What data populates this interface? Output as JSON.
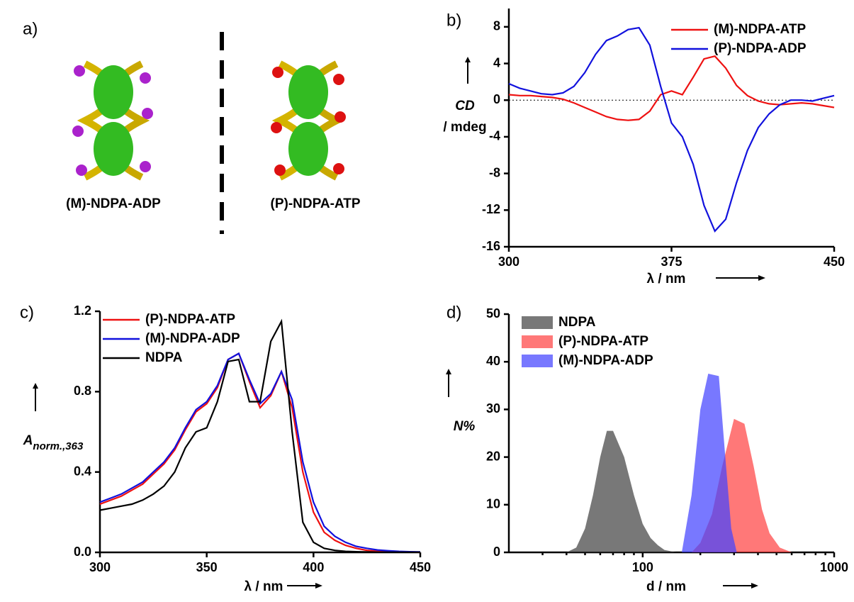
{
  "panel_a": {
    "label": "a)",
    "left_label": "(M)-NDPA-ADP",
    "right_label": "(P)-NDPA-ATP"
  },
  "chart_data": [
    {
      "type": "line",
      "label": "b)",
      "xlabel": "λ / nm",
      "ylabel": "CD",
      "ylabel_unit": "/ mdeg",
      "xlim": [
        300,
        450
      ],
      "ylim": [
        -16,
        10
      ],
      "xticks": [
        300,
        375,
        450
      ],
      "yticks": [
        8,
        4,
        0,
        -4,
        -8,
        -12,
        -16
      ],
      "reference_line": 0,
      "legend": "upper right",
      "x": [
        300,
        305,
        310,
        315,
        320,
        325,
        330,
        335,
        340,
        345,
        350,
        355,
        360,
        365,
        370,
        375,
        380,
        385,
        390,
        395,
        400,
        405,
        410,
        415,
        420,
        425,
        430,
        435,
        440,
        445,
        450
      ],
      "series": [
        {
          "name": "(M)-NDPA-ATP",
          "color": "#ee1111",
          "values": [
            0.6,
            0.5,
            0.5,
            0.4,
            0.3,
            0.1,
            -0.3,
            -0.8,
            -1.3,
            -1.8,
            -2.1,
            -2.2,
            -2.1,
            -1.2,
            0.6,
            1.0,
            0.6,
            2.5,
            4.5,
            4.8,
            3.5,
            1.6,
            0.5,
            -0.1,
            -0.4,
            -0.5,
            -0.4,
            -0.3,
            -0.4,
            -0.6,
            -0.8
          ]
        },
        {
          "name": "(P)-NDPA-ADP",
          "color": "#1111dd",
          "values": [
            1.8,
            1.3,
            1.0,
            0.7,
            0.6,
            0.8,
            1.5,
            3,
            5,
            6.5,
            7,
            7.7,
            7.9,
            6,
            1.5,
            -2.5,
            -4,
            -7,
            -11.5,
            -14.3,
            -13,
            -9,
            -5.5,
            -3,
            -1.5,
            -0.5,
            0,
            0,
            -0.1,
            0.2,
            0.5
          ]
        }
      ]
    },
    {
      "type": "line",
      "label": "c)",
      "xlabel": "λ / nm",
      "ylabel": "A",
      "ylabel_sub": "norm.,363",
      "xlim": [
        300,
        450
      ],
      "ylim": [
        0,
        1.2
      ],
      "xticks": [
        300,
        350,
        400,
        450
      ],
      "yticks": [
        {
          "value": 0,
          "label": "0.0"
        },
        0.4,
        0.8,
        1.2
      ],
      "legend": "upper left",
      "x": [
        300,
        305,
        310,
        315,
        320,
        325,
        330,
        335,
        340,
        345,
        350,
        355,
        360,
        365,
        370,
        375,
        380,
        385,
        390,
        395,
        400,
        405,
        410,
        415,
        420,
        425,
        430,
        435,
        440,
        445,
        450
      ],
      "series": [
        {
          "name": "(P)-NDPA-ATP",
          "color": "#ee1111",
          "values": [
            0.24,
            0.26,
            0.28,
            0.31,
            0.34,
            0.39,
            0.44,
            0.51,
            0.61,
            0.7,
            0.74,
            0.82,
            0.96,
            0.99,
            0.85,
            0.72,
            0.78,
            0.9,
            0.72,
            0.4,
            0.2,
            0.1,
            0.06,
            0.035,
            0.02,
            0.01,
            0.006,
            0.004,
            0.003,
            0.002,
            0.001
          ]
        },
        {
          "name": "(M)-NDPA-ADP",
          "color": "#1111dd",
          "values": [
            0.25,
            0.27,
            0.29,
            0.32,
            0.35,
            0.4,
            0.45,
            0.52,
            0.62,
            0.71,
            0.75,
            0.83,
            0.96,
            0.99,
            0.86,
            0.74,
            0.79,
            0.9,
            0.76,
            0.45,
            0.25,
            0.13,
            0.08,
            0.05,
            0.03,
            0.02,
            0.012,
            0.008,
            0.005,
            0.003,
            0.002
          ]
        },
        {
          "name": "NDPA",
          "color": "#000000",
          "values": [
            0.21,
            0.22,
            0.23,
            0.24,
            0.26,
            0.29,
            0.33,
            0.4,
            0.52,
            0.6,
            0.62,
            0.75,
            0.95,
            0.96,
            0.75,
            0.75,
            1.05,
            1.15,
            0.6,
            0.15,
            0.05,
            0.02,
            0.01,
            0.005,
            0.003,
            0.002,
            0.001,
            0.001,
            0.001,
            0.001,
            0.001
          ]
        }
      ]
    },
    {
      "type": "area",
      "label": "d)",
      "xlabel": "d / nm",
      "ylabel": "N%",
      "xscale": "log",
      "xlim": [
        20,
        1000
      ],
      "ylim": [
        0,
        50
      ],
      "xticks": [
        100,
        1000
      ],
      "yticks": [
        0,
        10,
        20,
        30,
        40,
        50
      ],
      "legend": "upper left",
      "series": [
        {
          "name": "NDPA",
          "color": "#444444",
          "x": [
            40,
            45,
            50,
            55,
            60,
            65,
            70,
            80,
            90,
            100,
            110,
            120,
            130,
            150,
            180
          ],
          "values": [
            0,
            1,
            5,
            12,
            20,
            25.5,
            25.5,
            20,
            12,
            6,
            3,
            1.5,
            0.5,
            0,
            0
          ]
        },
        {
          "name": "(P)-NDPA-ATP",
          "color": "#ff4444",
          "x": [
            180,
            200,
            230,
            260,
            300,
            340,
            380,
            420,
            460,
            520,
            600
          ],
          "values": [
            0,
            2,
            8,
            18,
            28,
            27,
            18,
            9,
            4,
            1,
            0
          ]
        },
        {
          "name": "(M)-NDPA-ADP",
          "color": "#4444ff",
          "x": [
            160,
            180,
            200,
            220,
            250,
            270,
            290,
            310
          ],
          "values": [
            0,
            12,
            30,
            37.5,
            37,
            20,
            5,
            0
          ]
        }
      ]
    }
  ]
}
